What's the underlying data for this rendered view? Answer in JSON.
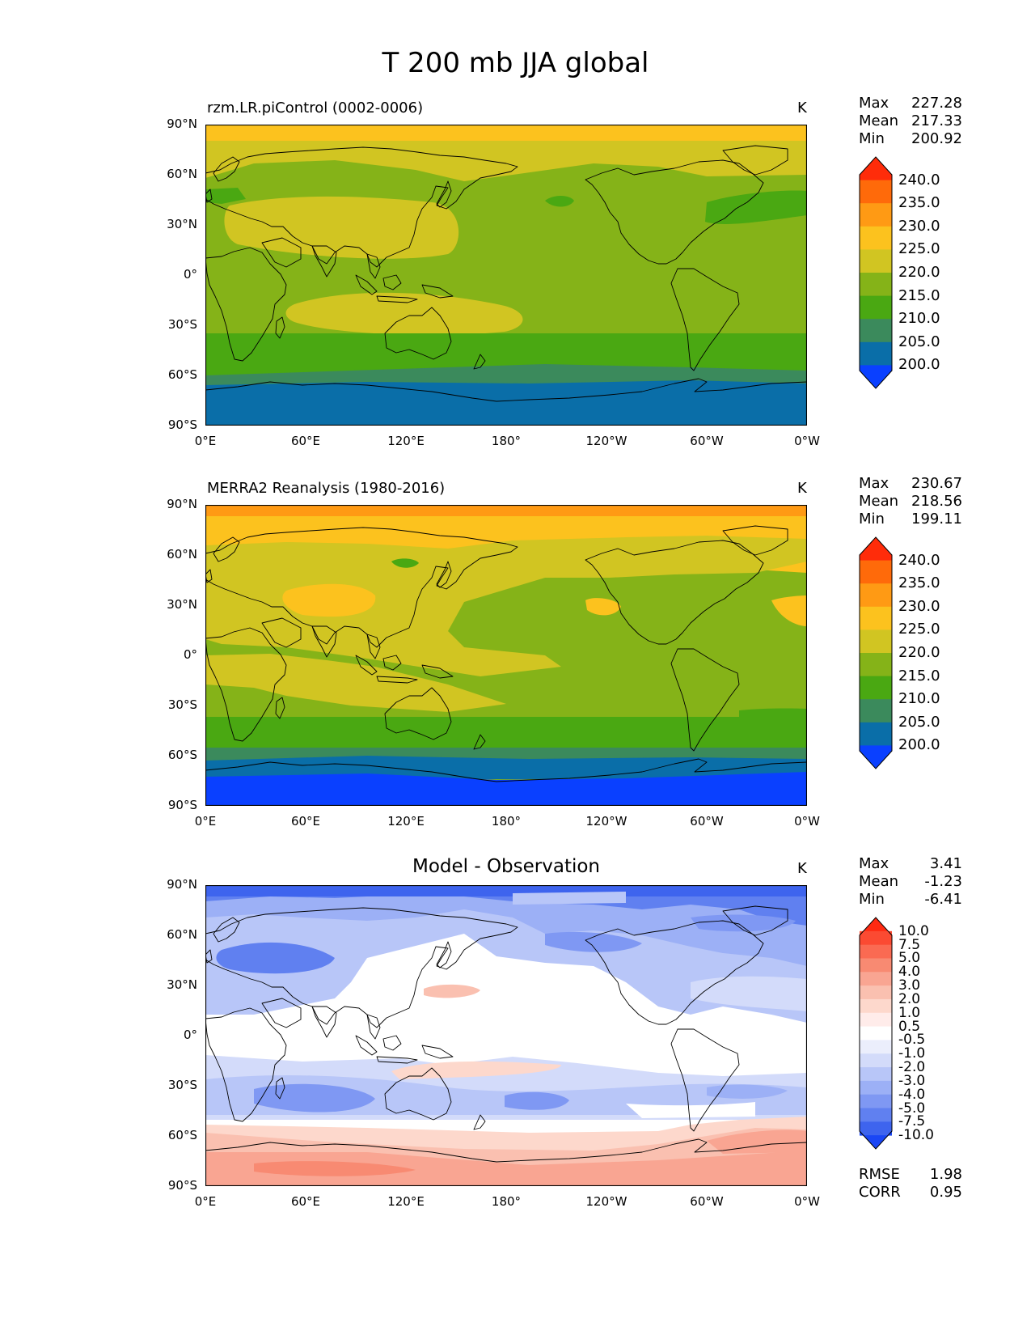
{
  "figure_title": "T 200 mb JJA global",
  "panels": [
    {
      "title": "rzm.LR.piControl (0002-0006)",
      "units": "K",
      "stats": {
        "max_label": "Max",
        "max": "227.28",
        "mean_label": "Mean",
        "mean": "217.33",
        "min_label": "Min",
        "min": "200.92"
      }
    },
    {
      "title": "MERRA2 Reanalysis (1980-2016)",
      "units": "K",
      "stats": {
        "max_label": "Max",
        "max": "230.67",
        "mean_label": "Mean",
        "mean": "218.56",
        "min_label": "Min",
        "min": "199.11"
      }
    },
    {
      "title": "Model - Observation",
      "units": "K",
      "stats": {
        "max_label": "Max",
        "max": "3.41",
        "mean_label": "Mean",
        "mean": "-1.23",
        "min_label": "Min",
        "min": "-6.41"
      },
      "metrics": {
        "rmse_label": "RMSE",
        "rmse": "1.98",
        "corr_label": "CORR",
        "corr": "0.95"
      }
    }
  ],
  "lat_labels": [
    "90°N",
    "60°N",
    "30°N",
    "0°",
    "30°S",
    "60°S",
    "90°S"
  ],
  "lon_labels": [
    "0°E",
    "60°E",
    "120°E",
    "180°",
    "120°W",
    "60°W",
    "0°W"
  ],
  "colorbar_abs": {
    "labels": [
      "240.0",
      "235.0",
      "230.0",
      "225.0",
      "220.0",
      "215.0",
      "210.0",
      "205.0",
      "200.0"
    ],
    "colors": [
      "#ff2c0a",
      "#ff6a0a",
      "#ff9a14",
      "#fcc21e",
      "#d1c522",
      "#85b318",
      "#4aa812",
      "#3b8a5c",
      "#0a6ea8",
      "#0a40ff"
    ]
  },
  "colorbar_diff": {
    "labels": [
      "10.0",
      "7.5",
      "5.0",
      "4.0",
      "3.0",
      "2.0",
      "1.0",
      "0.5",
      "-0.5",
      "-1.0",
      "-2.0",
      "-3.0",
      "-4.0",
      "-5.0",
      "-7.5",
      "-10.0"
    ],
    "colors": [
      "#ff2a12",
      "#fb4a32",
      "#fa6a52",
      "#f88a72",
      "#f9a592",
      "#fac0b0",
      "#fdd8cc",
      "#ffecea",
      "#ffffff",
      "#ebeefc",
      "#d3dbfa",
      "#b8c6f8",
      "#9cb0f6",
      "#7f98f3",
      "#6080f0",
      "#3e64ee",
      "#1a46f5"
    ]
  },
  "chart_data": {
    "type": "heatmap",
    "title": "T 200 mb JJA global",
    "variable": "T 200 mb",
    "units": "K",
    "x_ticks": [
      "0°E",
      "60°E",
      "120°E",
      "180°",
      "120°W",
      "60°W",
      "0°W"
    ],
    "y_ticks": [
      "90°N",
      "60°N",
      "30°N",
      "0°",
      "30°S",
      "60°S",
      "90°S"
    ],
    "panels": [
      {
        "name": "rzm.LR.piControl (0002-0006)",
        "max": 227.28,
        "mean": 217.33,
        "min": 200.92,
        "levels": [
          200,
          205,
          210,
          215,
          220,
          225,
          230,
          235,
          240
        ]
      },
      {
        "name": "MERRA2 Reanalysis (1980-2016)",
        "max": 230.67,
        "mean": 218.56,
        "min": 199.11,
        "levels": [
          200,
          205,
          210,
          215,
          220,
          225,
          230,
          235,
          240
        ]
      },
      {
        "name": "Model - Observation",
        "max": 3.41,
        "mean": -1.23,
        "min": -6.41,
        "rmse": 1.98,
        "corr": 0.95,
        "levels": [
          -10,
          -7.5,
          -5,
          -4,
          -3,
          -2,
          -1,
          -0.5,
          0.5,
          1,
          2,
          3,
          4,
          5,
          7.5,
          10
        ]
      }
    ]
  }
}
